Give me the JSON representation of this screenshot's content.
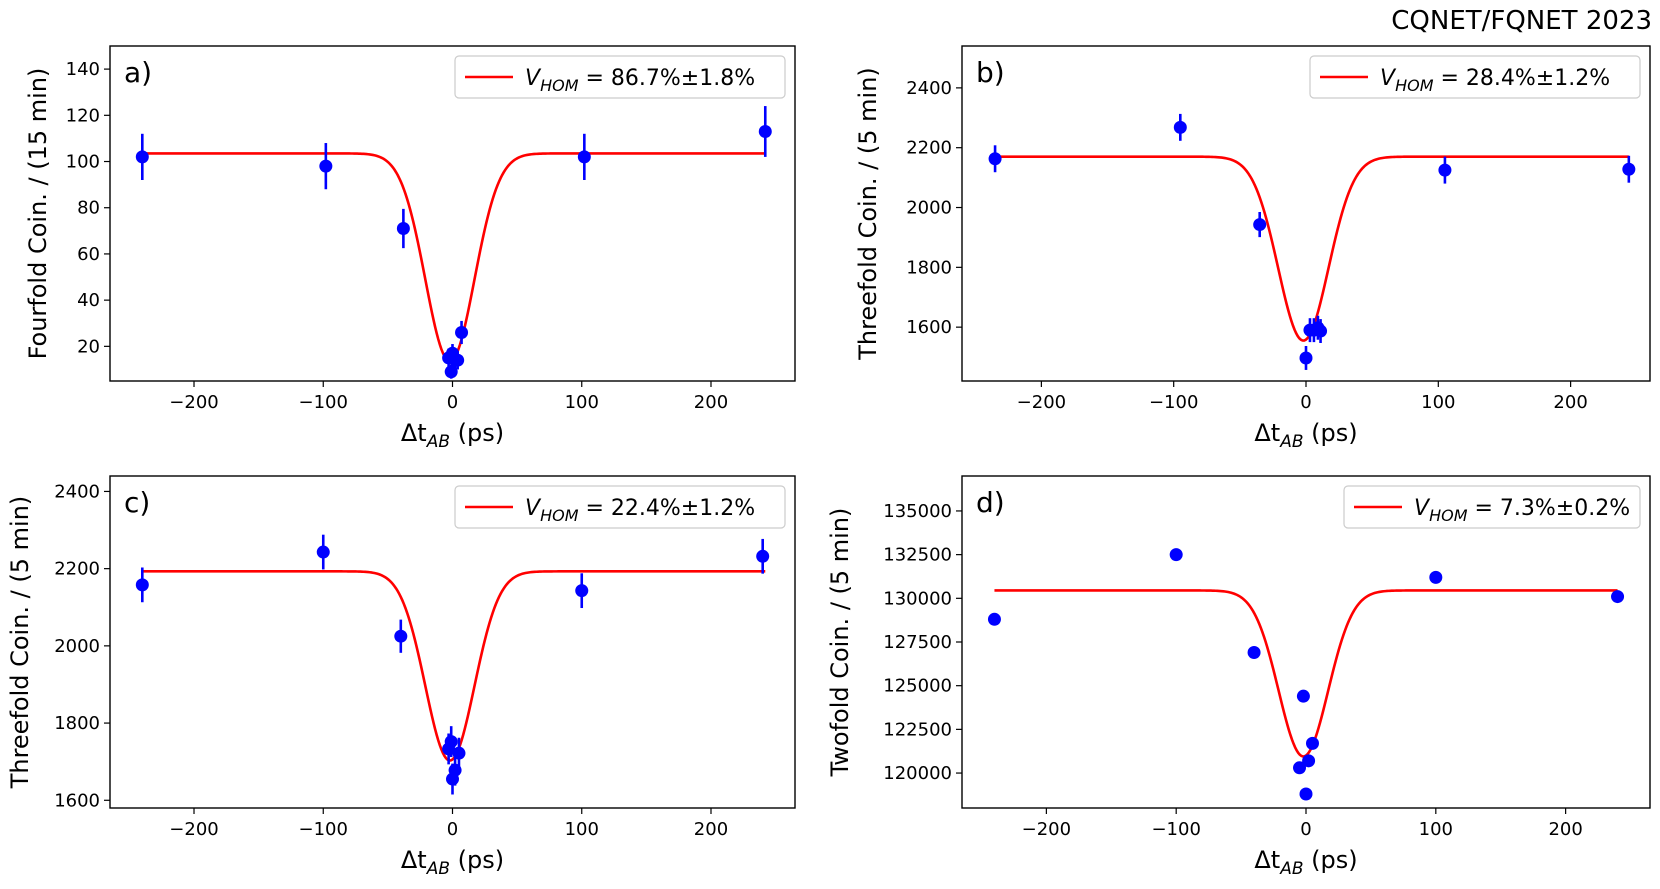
{
  "header": {
    "text": "CQNET/FQNET 2023"
  },
  "colors": {
    "fit": "#ff0000",
    "data": "#0000ff",
    "axis": "#000000"
  },
  "chart_data": [
    {
      "type": "scatter",
      "panel_label": "a)",
      "xlabel_main": "Δt",
      "xlabel_sub": "AB",
      "xlabel_unit": " (ps)",
      "ylabel": "Fourfold Coin. / (15 min)",
      "xlim": [
        -265,
        265
      ],
      "ylim": [
        5,
        150
      ],
      "xticks": [
        -200,
        -100,
        0,
        100,
        200
      ],
      "yticks": [
        20,
        40,
        60,
        80,
        100,
        120,
        140
      ],
      "legend": {
        "position": "top-right",
        "symbol": "V",
        "sub": "HOM",
        "value": " = 86.7%±1.8%"
      },
      "fit": {
        "baseline": 103.5,
        "depth": 90.0,
        "center": -2.0,
        "sigma": 19.0,
        "x_range": [
          -240,
          242
        ]
      },
      "points": [
        {
          "x": -240,
          "y": 102,
          "err": 10
        },
        {
          "x": -98,
          "y": 98,
          "err": 10
        },
        {
          "x": -38,
          "y": 71,
          "err": 8.5
        },
        {
          "x": -3,
          "y": 15,
          "err": 4
        },
        {
          "x": -1,
          "y": 9,
          "err": 3
        },
        {
          "x": 0,
          "y": 17,
          "err": 4
        },
        {
          "x": 2,
          "y": 14,
          "err": 4
        },
        {
          "x": 4,
          "y": 14,
          "err": 4
        },
        {
          "x": 7,
          "y": 26,
          "err": 5
        },
        {
          "x": 102,
          "y": 102,
          "err": 10
        },
        {
          "x": 242,
          "y": 113,
          "err": 11
        }
      ]
    },
    {
      "type": "scatter",
      "panel_label": "b)",
      "xlabel_main": "Δt",
      "xlabel_sub": "AB",
      "xlabel_unit": " (ps)",
      "ylabel": "Threefold Coin. / (5 min)",
      "xlim": [
        -260,
        260
      ],
      "ylim": [
        1420,
        2540
      ],
      "xticks": [
        -200,
        -100,
        0,
        100,
        200
      ],
      "yticks": [
        1600,
        1800,
        2000,
        2200,
        2400
      ],
      "legend": {
        "position": "top-right",
        "symbol": "V",
        "sub": "HOM",
        "value": " = 28.4%±1.2%"
      },
      "fit": {
        "baseline": 2170,
        "depth": 615,
        "center": -2.0,
        "sigma": 19.0,
        "x_range": [
          -235,
          244
        ]
      },
      "points": [
        {
          "x": -235,
          "y": 2163,
          "err": 45
        },
        {
          "x": -95,
          "y": 2268,
          "err": 45
        },
        {
          "x": -35,
          "y": 1943,
          "err": 42
        },
        {
          "x": 0,
          "y": 1497,
          "err": 40
        },
        {
          "x": 3,
          "y": 1590,
          "err": 40
        },
        {
          "x": 6,
          "y": 1590,
          "err": 40
        },
        {
          "x": 9,
          "y": 1598,
          "err": 40
        },
        {
          "x": 11,
          "y": 1587,
          "err": 40
        },
        {
          "x": 105,
          "y": 2125,
          "err": 45
        },
        {
          "x": 244,
          "y": 2128,
          "err": 45
        }
      ]
    },
    {
      "type": "scatter",
      "panel_label": "c)",
      "xlabel_main": "Δt",
      "xlabel_sub": "AB",
      "xlabel_unit": " (ps)",
      "ylabel": "Threefold Coin. / (5 min)",
      "xlim": [
        -265,
        265
      ],
      "ylim": [
        1580,
        2440
      ],
      "xticks": [
        -200,
        -100,
        0,
        100,
        200
      ],
      "yticks": [
        1600,
        1800,
        2000,
        2200,
        2400
      ],
      "legend": {
        "position": "top-right",
        "symbol": "V",
        "sub": "HOM",
        "value": " = 22.4%±1.2%"
      },
      "fit": {
        "baseline": 2193,
        "depth": 490,
        "center": -2.0,
        "sigma": 19.0,
        "x_range": [
          -240,
          242
        ]
      },
      "points": [
        {
          "x": -240,
          "y": 2158,
          "err": 45
        },
        {
          "x": -100,
          "y": 2243,
          "err": 45
        },
        {
          "x": -40,
          "y": 2025,
          "err": 43
        },
        {
          "x": -3,
          "y": 1733,
          "err": 40
        },
        {
          "x": -1,
          "y": 1752,
          "err": 40
        },
        {
          "x": 0,
          "y": 1655,
          "err": 40
        },
        {
          "x": 2,
          "y": 1678,
          "err": 40
        },
        {
          "x": 5,
          "y": 1722,
          "err": 40
        },
        {
          "x": 100,
          "y": 2143,
          "err": 45
        },
        {
          "x": 240,
          "y": 2232,
          "err": 45
        }
      ]
    },
    {
      "type": "scatter",
      "panel_label": "d)",
      "xlabel_main": "Δt",
      "xlabel_sub": "AB",
      "xlabel_unit": " (ps)",
      "ylabel": "Twofold Coin. / (5 min)",
      "xlim": [
        -265,
        265
      ],
      "ylim": [
        118000,
        137000
      ],
      "xticks": [
        -200,
        -100,
        0,
        100,
        200
      ],
      "yticks": [
        120000,
        122500,
        125000,
        127500,
        130000,
        132500,
        135000
      ],
      "legend": {
        "position": "top-right",
        "symbol": "V",
        "sub": "HOM",
        "value": " = 7.3%±0.2%"
      },
      "fit": {
        "baseline": 130450,
        "depth": 9500,
        "center": -2.0,
        "sigma": 19.0,
        "x_range": [
          -240,
          240
        ]
      },
      "points": [
        {
          "x": -240,
          "y": 128800,
          "err": 0
        },
        {
          "x": -100,
          "y": 132500,
          "err": 0
        },
        {
          "x": -40,
          "y": 126900,
          "err": 0
        },
        {
          "x": -5,
          "y": 120300,
          "err": 0
        },
        {
          "x": -2,
          "y": 124400,
          "err": 0
        },
        {
          "x": 0,
          "y": 118800,
          "err": 0
        },
        {
          "x": 2,
          "y": 120700,
          "err": 0
        },
        {
          "x": 5,
          "y": 121700,
          "err": 0
        },
        {
          "x": 100,
          "y": 131200,
          "err": 0
        },
        {
          "x": 240,
          "y": 130100,
          "err": 0
        }
      ]
    }
  ]
}
